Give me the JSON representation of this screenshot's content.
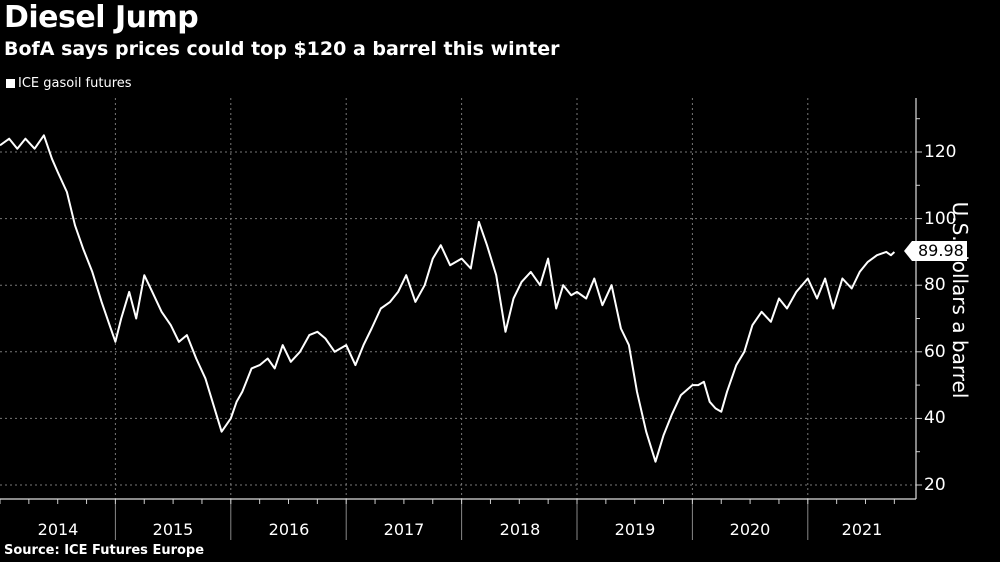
{
  "header": {
    "title": "Diesel Jump",
    "subtitle": "BofA says prices could top $120 a barrel this winter"
  },
  "legend": {
    "label": "ICE gasoil futures",
    "color": "#ffffff"
  },
  "footer": {
    "source": "Source: ICE Futures Europe"
  },
  "axis": {
    "y_title": "U.S. dollars a barrel",
    "y_ticks": [
      "120",
      "100",
      "80",
      "60",
      "40",
      "20"
    ],
    "x_ticks": [
      "2014",
      "2015",
      "2016",
      "2017",
      "2018",
      "2019",
      "2020",
      "2021"
    ]
  },
  "last_value_badge": "89.98",
  "chart_data": {
    "type": "line",
    "title": "Diesel Jump",
    "subtitle": "BofA says prices could top $120 a barrel this winter",
    "xlabel": "",
    "ylabel": "U.S. dollars a barrel",
    "ylim": [
      18,
      134
    ],
    "y_ticks": [
      20,
      40,
      60,
      80,
      100,
      120
    ],
    "x_ticks": [
      "2014",
      "2015",
      "2016",
      "2017",
      "2018",
      "2019",
      "2020",
      "2021"
    ],
    "grid": true,
    "legend_position": "top-left",
    "last_value": 89.98,
    "source": "ICE Futures Europe",
    "series": [
      {
        "name": "ICE gasoil futures",
        "color": "#ffffff",
        "x": [
          2014.0,
          2014.08,
          2014.15,
          2014.22,
          2014.3,
          2014.38,
          2014.45,
          2014.5,
          2014.58,
          2014.65,
          2014.72,
          2014.8,
          2014.88,
          2014.95,
          2015.0,
          2015.05,
          2015.12,
          2015.18,
          2015.25,
          2015.32,
          2015.4,
          2015.48,
          2015.55,
          2015.62,
          2015.7,
          2015.78,
          2015.85,
          2015.92,
          2016.0,
          2016.05,
          2016.1,
          2016.18,
          2016.25,
          2016.32,
          2016.38,
          2016.45,
          2016.52,
          2016.6,
          2016.68,
          2016.75,
          2016.82,
          2016.9,
          2017.0,
          2017.08,
          2017.15,
          2017.22,
          2017.3,
          2017.38,
          2017.45,
          2017.52,
          2017.6,
          2017.68,
          2017.75,
          2017.82,
          2017.9,
          2018.0,
          2018.08,
          2018.15,
          2018.22,
          2018.3,
          2018.38,
          2018.45,
          2018.52,
          2018.6,
          2018.68,
          2018.75,
          2018.82,
          2018.88,
          2018.95,
          2019.0,
          2019.08,
          2019.15,
          2019.22,
          2019.3,
          2019.38,
          2019.45,
          2019.52,
          2019.6,
          2019.68,
          2019.75,
          2019.82,
          2019.9,
          2020.0,
          2020.05,
          2020.1,
          2020.15,
          2020.2,
          2020.25,
          2020.3,
          2020.38,
          2020.45,
          2020.52,
          2020.6,
          2020.68,
          2020.75,
          2020.82,
          2020.9,
          2021.0,
          2021.08,
          2021.15,
          2021.22,
          2021.3,
          2021.38,
          2021.45,
          2021.52,
          2021.6,
          2021.68,
          2021.72,
          2021.75
        ],
        "values": [
          122,
          124,
          121,
          124,
          121,
          125,
          118,
          114,
          108,
          98,
          91,
          84,
          75,
          68,
          63,
          70,
          78,
          70,
          83,
          78,
          72,
          68,
          63,
          65,
          58,
          52,
          44,
          36,
          40,
          45,
          48,
          55,
          56,
          58,
          55,
          62,
          57,
          60,
          65,
          66,
          64,
          60,
          62,
          56,
          62,
          67,
          73,
          75,
          78,
          83,
          75,
          80,
          88,
          92,
          86,
          88,
          85,
          99,
          92,
          83,
          66,
          76,
          81,
          84,
          80,
          88,
          73,
          80,
          77,
          78,
          76,
          82,
          74,
          80,
          67,
          62,
          48,
          36,
          27,
          35,
          41,
          47,
          50,
          50,
          51,
          45,
          43,
          42,
          48,
          56,
          60,
          68,
          72,
          69,
          76,
          73,
          78,
          82,
          76,
          82,
          73,
          82,
          79,
          84,
          87,
          89,
          90,
          89,
          89.98
        ]
      }
    ]
  }
}
